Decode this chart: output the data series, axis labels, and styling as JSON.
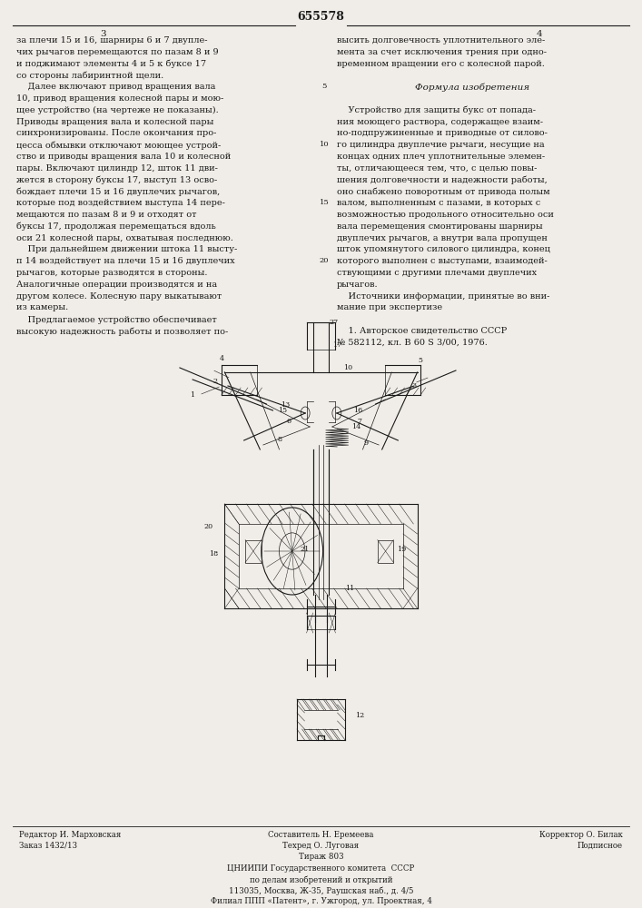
{
  "page_width": 7.07,
  "page_height": 10.0,
  "bg_color": "#f0ede8",
  "patent_number": "655578",
  "page_num_left": "3",
  "page_num_right": "4",
  "left_col_text": [
    "за плечи 15 и 16, шарниры 6 и 7 двупле-",
    "чих рычагов перемещаются по пазам 8 и 9",
    "и поджимают элементы 4 и 5 к буксе 17",
    "со стороны лабиринтной щели.",
    "    Далее включают привод вращения вала",
    "10, привод вращения колесной пары и мою-",
    "щее устройство (на чертеже не показаны).",
    "Приводы вращения вала и колесной пары",
    "синхронизированы. После окончания про-",
    "цесса обмывки отключают моющее устрой-",
    "ство и приводы вращения вала 10 и колесной",
    "пары. Включают цилиндр 12, шток 11 дви-",
    "жется в сторону буксы 17, выступ 13 осво-",
    "бождает плечи 15 и 16 двуплечих рычагов,",
    "которые под воздействием выступа 14 пере-",
    "мещаются по пазам 8 и 9 и отходят от",
    "буксы 17, продолжая перемещаться вдоль",
    "оси 21 колесной пары, охватывая последнюю.",
    "    При дальнейшем движении штока 11 высту-",
    "п 14 воздействует на плечи 15 и 16 двуплечих",
    "рычагов, которые разводятся в стороны.",
    "Аналогичные операции производятся и на",
    "другом колесе. Колесную пару выкатывают",
    "из камеры.",
    "    Предлагаемое устройство обеспечивает",
    "высокую надежность работы и позволяет по-"
  ],
  "right_col_text_normal": [
    "высить долговечность уплотнительного эле-",
    "мента за счет исключения трения при одно-",
    "временном вращении его с колесной парой."
  ],
  "right_col_formula_header": "Формула изобретения",
  "right_col_text_formula": [
    "    Устройство для защиты букс от попада-",
    "ния моющего раствора, содержащее взаим-",
    "но-подпружиненные и приводные от силово-",
    "го цилиндра двуплечие рычаги, несущие на",
    "концах одних плеч уплотнительные элемен-",
    "ты, отличающееся тем, что, с целью повы-",
    "шения долговечности и надежности работы,",
    "оно снабжено поворотным от привода полым",
    "валом, выполненным с пазами, в которых с",
    "возможностью продольного относительно оси",
    "вала перемещения смонтированы шарниры",
    "двуплечих рычагов, а внутри вала пропущен",
    "шток упомянутого силового цилиндра, конец",
    "которого выполнен с выступами, взаимодей-",
    "ствующими с другими плечами двуплечих",
    "рычагов.",
    "    Источники информации, принятые во вни-",
    "мание при экспертизе",
    "",
    "    1. Авторское свидетельство СССР",
    "№ 582112, кл. В 60 S 3/00, 1976."
  ],
  "line_numbers_right": [
    "5",
    "10",
    "15",
    "20"
  ],
  "bottom_left_text": [
    "Редактор И. Марховская",
    "Заказ 1432/13"
  ],
  "bottom_center_text": [
    "Составитель Н. Еремеева",
    "Техред О. Луговая",
    "Тираж 803"
  ],
  "bottom_right_text": [
    "Корректор О. Билак",
    "Подписное"
  ],
  "bottom_institute_text": [
    "ЦНИИПИ Государственного комитета  СССР",
    "по делам изобретений и открытий",
    "113035, Москва, Ж-35, Раушская наб., д. 4/5",
    "Филиал ППП «Патент», г. Ужгород, ул. Проектная, 4"
  ],
  "text_color": "#1a1a1a",
  "font_size_body": 7.0,
  "font_size_small": 6.2,
  "font_size_header": 8.0,
  "font_size_italic": 7.5
}
